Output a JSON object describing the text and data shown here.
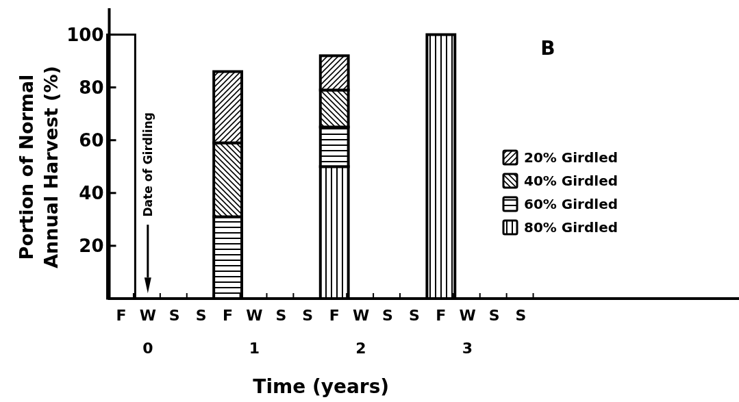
{
  "chart_data": {
    "type": "bar",
    "stacked": true,
    "ylabel": "Portion of Normal\nAnnual Harvest (%)",
    "xlabel": "Time (years)",
    "categories": [
      "F",
      "W",
      "S",
      "S",
      "F",
      "W",
      "S",
      "S",
      "F",
      "W",
      "S",
      "S",
      "F",
      "W",
      "S",
      "S"
    ],
    "series": [
      {
        "color": "#ffffff",
        "values": [
          100,
          null,
          null,
          null,
          null,
          null,
          null,
          null,
          null,
          null,
          null,
          null,
          null,
          null,
          null,
          null
        ]
      },
      {
        "name": "80% Girdled",
        "color": "#000000",
        "values": [
          null,
          null,
          null,
          null,
          null,
          null,
          null,
          null,
          50,
          null,
          null,
          null,
          100,
          null,
          null,
          null
        ]
      },
      {
        "name": "60% Girdled",
        "color": "#000000",
        "values": [
          null,
          null,
          null,
          null,
          31,
          null,
          null,
          null,
          15,
          null,
          null,
          null,
          null,
          null,
          null,
          null
        ]
      },
      {
        "name": "40% Girdled",
        "color": "#000000",
        "values": [
          null,
          null,
          null,
          null,
          28,
          null,
          null,
          null,
          14,
          null,
          null,
          null,
          null,
          null,
          null,
          null
        ]
      },
      {
        "name": "20% Girdled",
        "color": "#000000",
        "values": [
          null,
          null,
          null,
          null,
          27,
          null,
          null,
          null,
          13,
          null,
          null,
          null,
          null,
          null,
          null,
          null
        ]
      }
    ],
    "ylim": [
      0,
      110
    ],
    "yticks": [
      20,
      40,
      60,
      80,
      100
    ],
    "x2lim": [
      -0.375,
      5.55
    ],
    "x2ticks": [
      0,
      1,
      2,
      3
    ],
    "ref_lines": [
      {
        "axis": "x2",
        "value": 0,
        "label": "Date of Girdling"
      }
    ],
    "annotations": [
      "B"
    ],
    "legend": "right"
  }
}
